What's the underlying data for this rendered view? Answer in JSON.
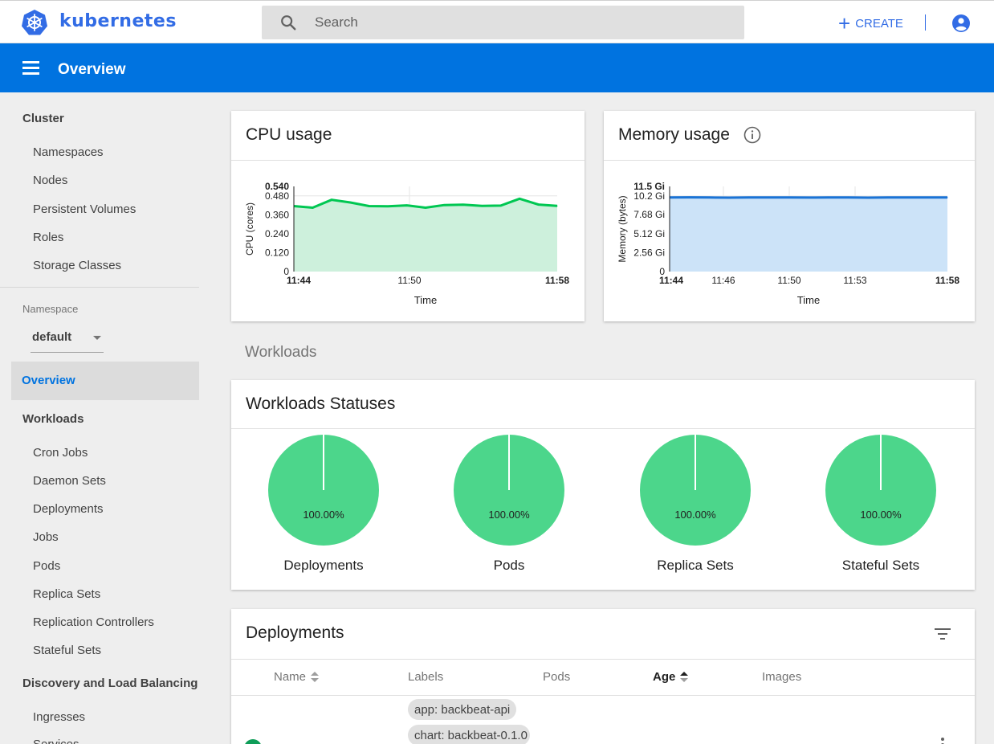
{
  "app": {
    "brand": "kubernetes",
    "create_label": "CREATE",
    "brand_color": "#326ce5",
    "accent_color": "#0073e0"
  },
  "search": {
    "placeholder": "Search"
  },
  "header": {
    "title": "Overview"
  },
  "sidebar": {
    "cluster_heading": "Cluster",
    "cluster_items": [
      "Namespaces",
      "Nodes",
      "Persistent Volumes",
      "Roles",
      "Storage Classes"
    ],
    "namespace_label": "Namespace",
    "namespace_value": "default",
    "overview": "Overview",
    "workloads_heading": "Workloads",
    "workloads_items": [
      "Cron Jobs",
      "Daemon Sets",
      "Deployments",
      "Jobs",
      "Pods",
      "Replica Sets",
      "Replication Controllers",
      "Stateful Sets"
    ],
    "discovery_heading": "Discovery and Load Balancing",
    "discovery_items": [
      "Ingresses",
      "Services"
    ]
  },
  "cpu_card": {
    "title": "CPU usage"
  },
  "memory_card": {
    "title": "Memory usage"
  },
  "workloads_heading": "Workloads",
  "statuses_card": {
    "title": "Workloads Statuses",
    "items": [
      {
        "label": "Deployments",
        "percent": "100.00%",
        "running": 1.0
      },
      {
        "label": "Pods",
        "percent": "100.00%",
        "running": 1.0
      },
      {
        "label": "Replica Sets",
        "percent": "100.00%",
        "running": 1.0
      },
      {
        "label": "Stateful Sets",
        "percent": "100.00%",
        "running": 1.0
      }
    ],
    "color": "#4cd68b"
  },
  "deployments_card": {
    "title": "Deployments",
    "columns": {
      "name": "Name",
      "labels": "Labels",
      "pods": "Pods",
      "age": "Age",
      "images": "Images"
    },
    "row_labels": [
      "app: backbeat-api",
      "chart: backbeat-0.1.0"
    ]
  },
  "chart_data": [
    {
      "type": "area",
      "title": "CPU usage",
      "xlabel": "Time",
      "ylabel": "CPU (cores)",
      "x_ticks": [
        "11:44",
        "11:50",
        "11:58"
      ],
      "y_ticks": [
        "0",
        "0.120",
        "0.240",
        "0.360",
        "0.480",
        "0.540"
      ],
      "ylim": [
        0,
        0.54
      ],
      "values": [
        0.415,
        0.405,
        0.455,
        0.438,
        0.415,
        0.414,
        0.42,
        0.405,
        0.422,
        0.424,
        0.416,
        0.418,
        0.462,
        0.425,
        0.416
      ],
      "color": "#00c752",
      "fill": "#cdf0dc"
    },
    {
      "type": "area",
      "title": "Memory usage",
      "xlabel": "Time",
      "ylabel": "Memory (bytes)",
      "x_ticks": [
        "11:44",
        "11:46",
        "11:50",
        "11:53",
        "11:58"
      ],
      "y_ticks": [
        "0",
        "2.56 Gi",
        "5.12 Gi",
        "7.68 Gi",
        "10.2 Gi",
        "11.5 Gi"
      ],
      "ylim": [
        0,
        11.5
      ],
      "values": [
        10.0,
        10.02,
        10.0,
        9.98,
        10.0,
        10.01,
        10.0,
        9.99,
        10.0,
        10.0,
        9.98,
        10.0,
        10.0,
        10.0,
        10.0
      ],
      "color": "#1a73d5",
      "fill": "#cce3f8"
    }
  ]
}
